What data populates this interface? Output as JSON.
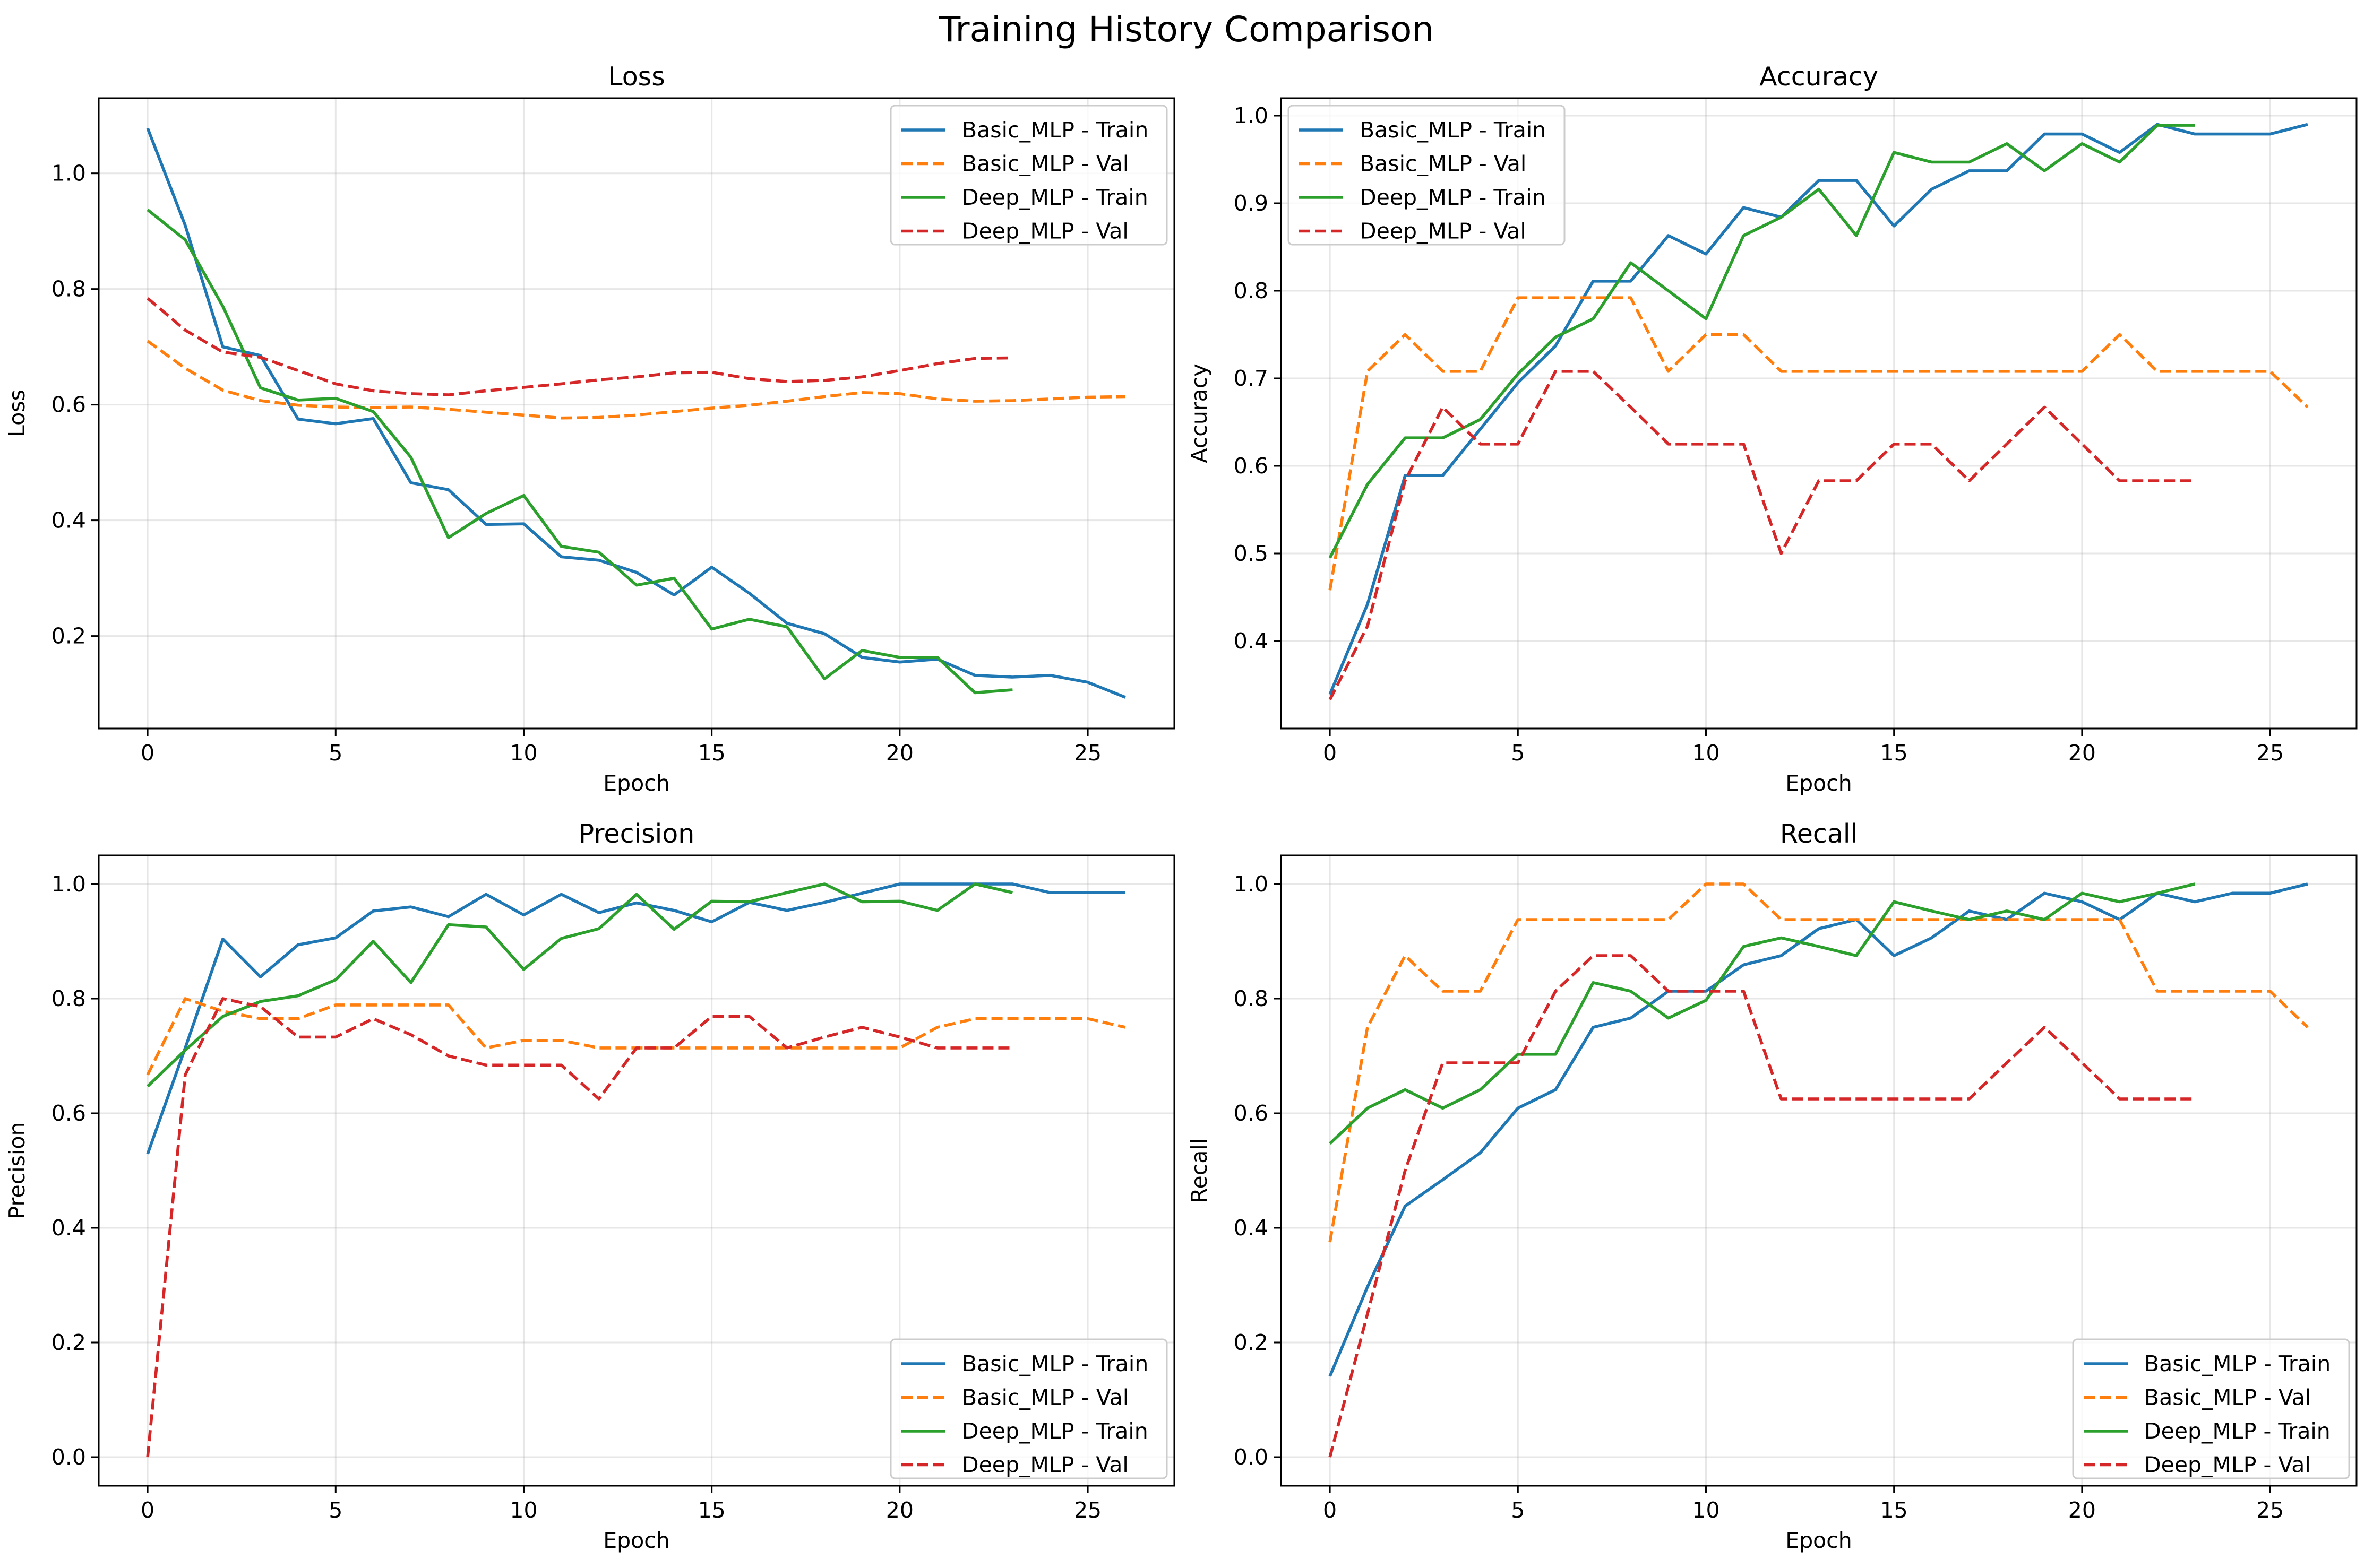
{
  "chart_data": {
    "title": "Training History Comparison",
    "colors": {
      "Basic_MLP - Train": "#1f77b4",
      "Basic_MLP - Val": "#ff7f0e",
      "Deep_MLP - Train": "#2ca02c",
      "Deep_MLP - Val": "#d62728"
    },
    "panels": [
      {
        "type": "line",
        "title": "Loss",
        "xlabel": "Epoch",
        "ylabel": "Loss",
        "xlim": [
          -1.3,
          27.3
        ],
        "ylim": [
          0.04,
          1.13
        ],
        "xticks": [
          0,
          5,
          10,
          15,
          20,
          25
        ],
        "yticks": [
          0.2,
          0.4,
          0.6,
          0.8,
          1.0
        ],
        "ytick_labels": [
          "0.2",
          "0.4",
          "0.6",
          "0.8",
          "1.0"
        ],
        "grid": true,
        "legend": "upper right",
        "series": [
          {
            "name": "Basic_MLP - Train",
            "dash": "solid",
            "values": [
              1.078,
              0.91,
              0.7,
              0.685,
              0.575,
              0.567,
              0.576,
              0.465,
              0.453,
              0.393,
              0.394,
              0.337,
              0.331,
              0.31,
              0.271,
              0.319,
              0.274,
              0.222,
              0.204,
              0.163,
              0.155,
              0.16,
              0.132,
              0.129,
              0.132,
              0.12,
              0.094
            ]
          },
          {
            "name": "Basic_MLP - Val",
            "dash": "dashed",
            "values": [
              0.71,
              0.663,
              0.625,
              0.607,
              0.599,
              0.596,
              0.595,
              0.596,
              0.592,
              0.587,
              0.582,
              0.577,
              0.578,
              0.582,
              0.588,
              0.594,
              0.599,
              0.606,
              0.614,
              0.621,
              0.619,
              0.61,
              0.606,
              0.607,
              0.61,
              0.613,
              0.614
            ]
          },
          {
            "name": "Deep_MLP - Train",
            "dash": "solid",
            "values": [
              0.937,
              0.885,
              0.77,
              0.629,
              0.608,
              0.611,
              0.588,
              0.509,
              0.37,
              0.412,
              0.443,
              0.355,
              0.345,
              0.288,
              0.3,
              0.212,
              0.229,
              0.216,
              0.126,
              0.175,
              0.163,
              0.163,
              0.102,
              0.107
            ]
          },
          {
            "name": "Deep_MLP - Val",
            "dash": "dashed",
            "values": [
              0.784,
              0.729,
              0.691,
              0.682,
              0.659,
              0.636,
              0.624,
              0.619,
              0.617,
              0.624,
              0.63,
              0.636,
              0.643,
              0.648,
              0.655,
              0.656,
              0.645,
              0.64,
              0.642,
              0.648,
              0.659,
              0.671,
              0.68,
              0.681
            ]
          }
        ]
      },
      {
        "type": "line",
        "title": "Accuracy",
        "xlabel": "Epoch",
        "ylabel": "Accuracy",
        "xlim": [
          -1.3,
          27.3
        ],
        "ylim": [
          0.3,
          1.02
        ],
        "xticks": [
          0,
          5,
          10,
          15,
          20,
          25
        ],
        "yticks": [
          0.4,
          0.5,
          0.6,
          0.7,
          0.8,
          0.9,
          1.0
        ],
        "ytick_labels": [
          "0.4",
          "0.5",
          "0.6",
          "0.7",
          "0.8",
          "0.9",
          "1.0"
        ],
        "grid": true,
        "legend": "upper left",
        "series": [
          {
            "name": "Basic_MLP - Train",
            "dash": "solid",
            "values": [
              0.339,
              0.442,
              0.589,
              0.589,
              0.642,
              0.695,
              0.737,
              0.811,
              0.811,
              0.863,
              0.842,
              0.895,
              0.884,
              0.926,
              0.926,
              0.874,
              0.916,
              0.937,
              0.937,
              0.979,
              0.979,
              0.958,
              0.99,
              0.979,
              0.979,
              0.979,
              0.99
            ]
          },
          {
            "name": "Basic_MLP - Val",
            "dash": "dashed",
            "values": [
              0.458,
              0.708,
              0.75,
              0.708,
              0.708,
              0.792,
              0.792,
              0.792,
              0.792,
              0.708,
              0.75,
              0.75,
              0.708,
              0.708,
              0.708,
              0.708,
              0.708,
              0.708,
              0.708,
              0.708,
              0.708,
              0.75,
              0.708,
              0.708,
              0.708,
              0.708,
              0.667
            ]
          },
          {
            "name": "Deep_MLP - Train",
            "dash": "solid",
            "values": [
              0.495,
              0.579,
              0.632,
              0.632,
              0.653,
              0.705,
              0.747,
              0.768,
              0.832,
              0.8,
              0.768,
              0.863,
              0.884,
              0.916,
              0.863,
              0.958,
              0.947,
              0.947,
              0.968,
              0.937,
              0.968,
              0.947,
              0.989,
              0.989
            ]
          },
          {
            "name": "Deep_MLP - Val",
            "dash": "dashed",
            "values": [
              0.333,
              0.417,
              0.583,
              0.667,
              0.625,
              0.625,
              0.708,
              0.708,
              0.667,
              0.625,
              0.625,
              0.625,
              0.5,
              0.583,
              0.583,
              0.625,
              0.625,
              0.583,
              0.625,
              0.667,
              0.625,
              0.583,
              0.583,
              0.583
            ]
          }
        ]
      },
      {
        "type": "line",
        "title": "Precision",
        "xlabel": "Epoch",
        "ylabel": "Precision",
        "xlim": [
          -1.3,
          27.3
        ],
        "ylim": [
          -0.05,
          1.05
        ],
        "xticks": [
          0,
          5,
          10,
          15,
          20,
          25
        ],
        "yticks": [
          0.0,
          0.2,
          0.4,
          0.6,
          0.8,
          1.0
        ],
        "ytick_labels": [
          "0.0",
          "0.2",
          "0.4",
          "0.6",
          "0.8",
          "1.0"
        ],
        "grid": true,
        "legend": "lower right",
        "series": [
          {
            "name": "Basic_MLP - Train",
            "dash": "solid",
            "values": [
              0.529,
              0.714,
              0.904,
              0.838,
              0.894,
              0.906,
              0.953,
              0.96,
              0.943,
              0.982,
              0.946,
              0.982,
              0.95,
              0.967,
              0.954,
              0.934,
              0.968,
              0.954,
              0.968,
              0.984,
              1.0,
              1.0,
              1.0,
              1.0,
              0.985,
              0.985,
              0.985
            ]
          },
          {
            "name": "Basic_MLP - Val",
            "dash": "dashed",
            "values": [
              0.667,
              0.8,
              0.778,
              0.765,
              0.765,
              0.789,
              0.789,
              0.789,
              0.789,
              0.714,
              0.727,
              0.727,
              0.714,
              0.714,
              0.714,
              0.714,
              0.714,
              0.714,
              0.714,
              0.714,
              0.714,
              0.75,
              0.765,
              0.765,
              0.765,
              0.765,
              0.75
            ]
          },
          {
            "name": "Deep_MLP - Train",
            "dash": "solid",
            "values": [
              0.647,
              0.71,
              0.769,
              0.795,
              0.805,
              0.833,
              0.9,
              0.828,
              0.929,
              0.925,
              0.851,
              0.905,
              0.922,
              0.982,
              0.921,
              0.97,
              0.969,
              0.985,
              1.0,
              0.969,
              0.97,
              0.954,
              1.0,
              0.985
            ]
          },
          {
            "name": "Deep_MLP - Val",
            "dash": "dashed",
            "values": [
              0.0,
              0.667,
              0.8,
              0.786,
              0.733,
              0.733,
              0.765,
              0.737,
              0.7,
              0.684,
              0.684,
              0.684,
              0.625,
              0.714,
              0.714,
              0.769,
              0.769,
              0.714,
              0.733,
              0.75,
              0.733,
              0.714,
              0.714,
              0.714
            ]
          }
        ]
      },
      {
        "type": "line",
        "title": "Recall",
        "xlabel": "Epoch",
        "ylabel": "Recall",
        "xlim": [
          -1.3,
          27.3
        ],
        "ylim": [
          -0.05,
          1.05
        ],
        "xticks": [
          0,
          5,
          10,
          15,
          20,
          25
        ],
        "yticks": [
          0.0,
          0.2,
          0.4,
          0.6,
          0.8,
          1.0
        ],
        "ytick_labels": [
          "0.0",
          "0.2",
          "0.4",
          "0.6",
          "0.8",
          "1.0"
        ],
        "grid": true,
        "legend": "lower right",
        "series": [
          {
            "name": "Basic_MLP - Train",
            "dash": "solid",
            "values": [
              0.141,
              0.297,
              0.438,
              0.484,
              0.531,
              0.609,
              0.641,
              0.75,
              0.766,
              0.813,
              0.813,
              0.859,
              0.875,
              0.922,
              0.938,
              0.875,
              0.906,
              0.953,
              0.938,
              0.984,
              0.969,
              0.938,
              0.984,
              0.969,
              0.984,
              0.984,
              1.0
            ]
          },
          {
            "name": "Basic_MLP - Val",
            "dash": "dashed",
            "values": [
              0.375,
              0.75,
              0.875,
              0.813,
              0.813,
              0.938,
              0.938,
              0.938,
              0.938,
              0.938,
              1.0,
              1.0,
              0.938,
              0.938,
              0.938,
              0.938,
              0.938,
              0.938,
              0.938,
              0.938,
              0.938,
              0.938,
              0.813,
              0.813,
              0.813,
              0.813,
              0.75
            ]
          },
          {
            "name": "Deep_MLP - Train",
            "dash": "solid",
            "values": [
              0.547,
              0.609,
              0.641,
              0.609,
              0.641,
              0.703,
              0.703,
              0.828,
              0.813,
              0.766,
              0.797,
              0.891,
              0.906,
              0.891,
              0.875,
              0.969,
              0.953,
              0.938,
              0.953,
              0.938,
              0.984,
              0.969,
              0.984,
              1.0
            ]
          },
          {
            "name": "Deep_MLP - Val",
            "dash": "dashed",
            "values": [
              0.0,
              0.25,
              0.5,
              0.688,
              0.688,
              0.688,
              0.813,
              0.875,
              0.875,
              0.813,
              0.813,
              0.813,
              0.625,
              0.625,
              0.625,
              0.625,
              0.625,
              0.625,
              0.688,
              0.75,
              0.688,
              0.625,
              0.625,
              0.625
            ]
          }
        ]
      }
    ]
  }
}
